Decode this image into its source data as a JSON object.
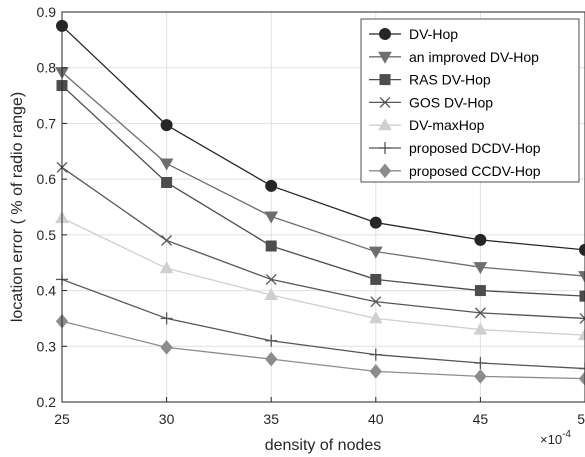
{
  "chart_data": {
    "type": "line",
    "xlabel": "density of nodes",
    "ylabel": "location error ( % of radio range)",
    "x_multiplier": {
      "base": "×10",
      "exponent": "-4"
    },
    "x": [
      25,
      30,
      35,
      40,
      45,
      50
    ],
    "xticks": [
      "25",
      "30",
      "35",
      "40",
      "45",
      "50"
    ],
    "yticks": [
      "0.2",
      "0.3",
      "0.4",
      "0.5",
      "0.6",
      "0.7",
      "0.8",
      "0.9"
    ],
    "xlim": [
      25,
      50
    ],
    "ylim": [
      0.2,
      0.9
    ],
    "grid": true,
    "legend_position": "top-right",
    "series": [
      {
        "name": "DV-Hop",
        "values": [
          0.875,
          0.697,
          0.588,
          0.522,
          0.491,
          0.473
        ],
        "color": "#262626",
        "marker": "circle"
      },
      {
        "name": "an improved DV-Hop",
        "values": [
          0.792,
          0.628,
          0.533,
          0.47,
          0.442,
          0.426
        ],
        "color": "#6e6e6e",
        "marker": "triangle-down"
      },
      {
        "name": "RAS DV-Hop",
        "values": [
          0.768,
          0.594,
          0.48,
          0.42,
          0.4,
          0.39
        ],
        "color": "#4d4d4d",
        "marker": "square"
      },
      {
        "name": "GOS DV-Hop",
        "values": [
          0.621,
          0.49,
          0.42,
          0.38,
          0.36,
          0.35
        ],
        "color": "#555555",
        "marker": "x"
      },
      {
        "name": "DV-maxHop",
        "values": [
          0.53,
          0.44,
          0.392,
          0.35,
          0.33,
          0.32
        ],
        "color": "#cfcfcf",
        "marker": "triangle-up"
      },
      {
        "name": "proposed DCDV-Hop",
        "values": [
          0.42,
          0.35,
          0.31,
          0.285,
          0.27,
          0.26
        ],
        "color": "#555555",
        "marker": "plus"
      },
      {
        "name": "proposed CCDV-Hop",
        "values": [
          0.345,
          0.298,
          0.277,
          0.255,
          0.246,
          0.242
        ],
        "color": "#8c8c8c",
        "marker": "diamond"
      }
    ]
  }
}
